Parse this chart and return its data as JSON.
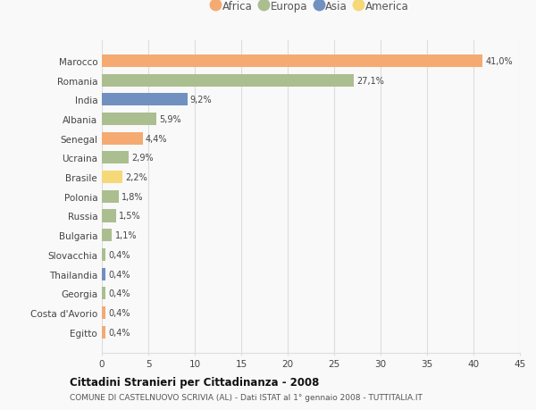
{
  "countries": [
    "Marocco",
    "Romania",
    "India",
    "Albania",
    "Senegal",
    "Ucraina",
    "Brasile",
    "Polonia",
    "Russia",
    "Bulgaria",
    "Slovacchia",
    "Thailandia",
    "Georgia",
    "Costa d'Avorio",
    "Egitto"
  ],
  "values": [
    41.0,
    27.1,
    9.2,
    5.9,
    4.4,
    2.9,
    2.2,
    1.8,
    1.5,
    1.1,
    0.4,
    0.4,
    0.4,
    0.4,
    0.4
  ],
  "labels": [
    "41,0%",
    "27,1%",
    "9,2%",
    "5,9%",
    "4,4%",
    "2,9%",
    "2,2%",
    "1,8%",
    "1,5%",
    "1,1%",
    "0,4%",
    "0,4%",
    "0,4%",
    "0,4%",
    "0,4%"
  ],
  "continent": [
    "Africa",
    "Europa",
    "Asia",
    "Europa",
    "Africa",
    "Europa",
    "America",
    "Europa",
    "Europa",
    "Europa",
    "Europa",
    "Asia",
    "Europa",
    "Africa",
    "Africa"
  ],
  "colors": {
    "Africa": "#F5AA72",
    "Europa": "#ABBE90",
    "Asia": "#7090C0",
    "America": "#F5D878"
  },
  "legend_order": [
    "Africa",
    "Europa",
    "Asia",
    "America"
  ],
  "xlim": [
    0,
    45
  ],
  "xticks": [
    0,
    5,
    10,
    15,
    20,
    25,
    30,
    35,
    40,
    45
  ],
  "title1": "Cittadini Stranieri per Cittadinanza - 2008",
  "title2": "COMUNE DI CASTELNUOVO SCRIVIA (AL) - Dati ISTAT al 1° gennaio 2008 - TUTTITALIA.IT",
  "bg_color": "#f9f9f9",
  "grid_color": "#dddddd",
  "bar_height": 0.65
}
